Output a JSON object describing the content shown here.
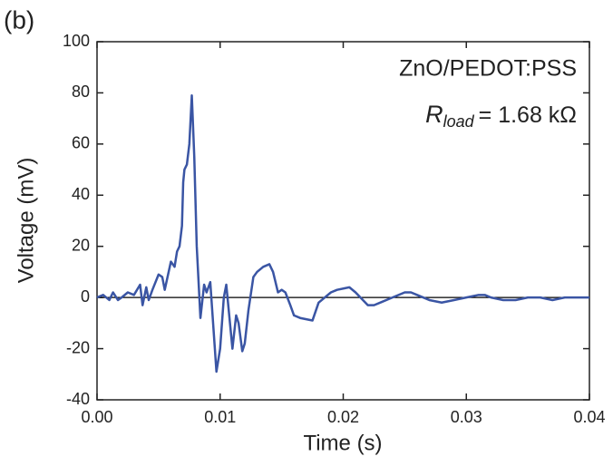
{
  "chart_data": {
    "type": "line",
    "panel_label": "(b)",
    "xlabel": "Time (s)",
    "ylabel": "Voltage (mV)",
    "annotation": "ZnO/PEDOT:PSS",
    "r_load": {
      "symbol": "R",
      "subscript": "load",
      "text": "= 1.68 kΩ"
    },
    "xlim": [
      0,
      0.04
    ],
    "ylim": [
      -40,
      100
    ],
    "xticks": [
      {
        "value": 0,
        "label": "0.00"
      },
      {
        "value": 0.01,
        "label": "0.01"
      },
      {
        "value": 0.02,
        "label": "0.02"
      },
      {
        "value": 0.03,
        "label": "0.03"
      },
      {
        "value": 0.04,
        "label": "0.04"
      }
    ],
    "yticks": [
      -40,
      -20,
      0,
      20,
      40,
      60,
      80,
      100
    ],
    "hline": 0,
    "series": [
      {
        "color": "#3a55a4",
        "x": [
          0,
          0.0005,
          0.001,
          0.0013,
          0.0017,
          0.002,
          0.0025,
          0.003,
          0.0035,
          0.0037,
          0.004,
          0.0042,
          0.0045,
          0.005,
          0.0053,
          0.0055,
          0.006,
          0.0063,
          0.0065,
          0.0067,
          0.0069,
          0.007,
          0.0071,
          0.0073,
          0.0075,
          0.0077,
          0.0079,
          0.0081,
          0.0084,
          0.0087,
          0.0089,
          0.0092,
          0.0095,
          0.0097,
          0.01,
          0.0103,
          0.0105,
          0.0107,
          0.011,
          0.0113,
          0.0115,
          0.0118,
          0.012,
          0.0123,
          0.0127,
          0.013,
          0.0135,
          0.014,
          0.0143,
          0.0147,
          0.015,
          0.0153,
          0.0157,
          0.016,
          0.0165,
          0.0175,
          0.018,
          0.019,
          0.0195,
          0.0205,
          0.021,
          0.022,
          0.0225,
          0.023,
          0.024,
          0.025,
          0.0255,
          0.026,
          0.027,
          0.028,
          0.029,
          0.03,
          0.031,
          0.0315,
          0.032,
          0.033,
          0.034,
          0.035,
          0.036,
          0.037,
          0.038,
          0.039,
          0.04
        ],
        "values": [
          0,
          1,
          -1,
          2,
          -1,
          0,
          2,
          1,
          5,
          -3,
          4,
          -1,
          3,
          9,
          8,
          3,
          14,
          12,
          18,
          20,
          28,
          45,
          50,
          52,
          60,
          79,
          55,
          20,
          -8,
          5,
          2,
          6,
          -15,
          -29,
          -20,
          0,
          5,
          -5,
          -20,
          -7,
          -10,
          -21,
          -18,
          -5,
          8,
          10,
          12,
          13,
          10,
          2,
          3,
          2,
          -3,
          -7,
          -8,
          -9,
          -2,
          2,
          3,
          4,
          2,
          -3,
          -3,
          -2,
          0,
          2,
          2,
          1,
          -1,
          -2,
          -1,
          0,
          1,
          1,
          0,
          -1,
          -1,
          0,
          0,
          -1,
          0,
          0,
          0
        ]
      }
    ]
  }
}
